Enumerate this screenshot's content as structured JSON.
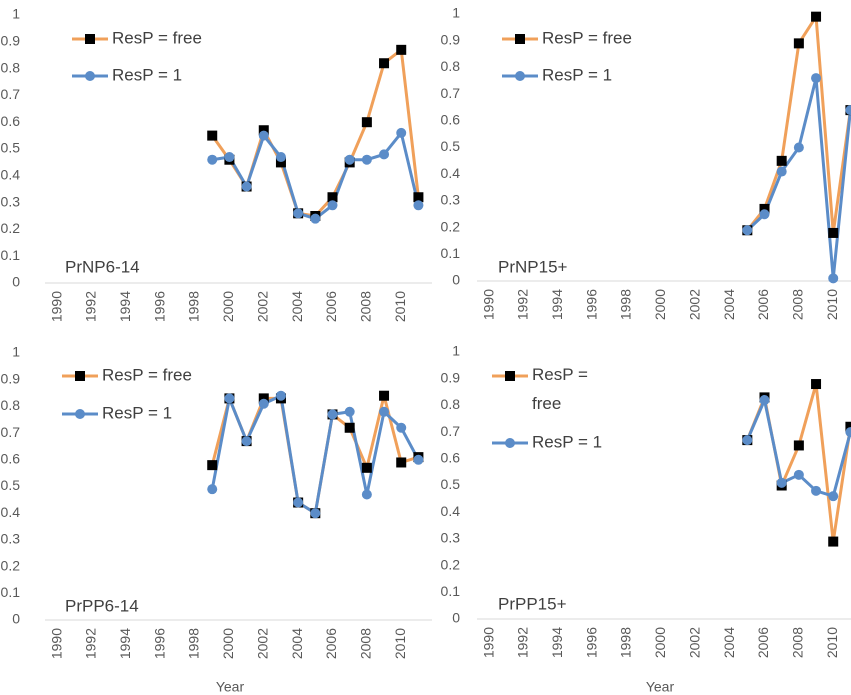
{
  "chart_data": [
    {
      "type": "line",
      "title": "PrNP6-14",
      "x": [
        1999,
        2000,
        2001,
        2002,
        2003,
        2004,
        2005,
        2006,
        2007,
        2008,
        2009,
        2010,
        2011
      ],
      "series": [
        {
          "name": "ResP = free",
          "color": "#f0a05a",
          "marker": "square",
          "marker_color": "#000000",
          "values": [
            0.55,
            0.46,
            0.36,
            0.57,
            0.45,
            0.26,
            0.25,
            0.32,
            0.45,
            0.6,
            0.82,
            0.87,
            0.32
          ]
        },
        {
          "name": "ResP = 1",
          "color": "#5b8cc8",
          "marker": "circle",
          "marker_color": "#5b8cc8",
          "values": [
            0.46,
            0.47,
            0.36,
            0.55,
            0.47,
            0.26,
            0.24,
            0.29,
            0.46,
            0.46,
            0.48,
            0.56,
            0.29
          ]
        }
      ],
      "xlim": [
        1989.5,
        2011.5
      ],
      "xticks": [
        1990,
        1992,
        1994,
        1996,
        1998,
        2000,
        2002,
        2004,
        2006,
        2008,
        2010
      ],
      "ylim": [
        0,
        1
      ],
      "yticks": [
        0,
        0.1,
        0.2,
        0.3,
        0.4,
        0.5,
        0.6,
        0.7,
        0.8,
        0.9,
        1
      ],
      "legend": "upper left"
    },
    {
      "type": "line",
      "title": "PrNP15+",
      "x": [
        2005,
        2006,
        2007,
        2008,
        2009,
        2010,
        2011
      ],
      "series": [
        {
          "name": "ResP = free",
          "color": "#f0a05a",
          "marker": "square",
          "marker_color": "#000000",
          "values": [
            0.19,
            0.27,
            0.45,
            0.89,
            0.99,
            0.18,
            0.64
          ]
        },
        {
          "name": "ResP = 1",
          "color": "#5b8cc8",
          "marker": "circle",
          "marker_color": "#5b8cc8",
          "values": [
            0.19,
            0.25,
            0.41,
            0.5,
            0.76,
            0.01,
            0.64
          ]
        }
      ],
      "xlim": [
        1989.5,
        2011.5
      ],
      "xticks": [
        1990,
        1992,
        1994,
        1996,
        1998,
        2000,
        2002,
        2004,
        2006,
        2008,
        2010
      ],
      "ylim": [
        0,
        1
      ],
      "yticks": [
        0,
        0.1,
        0.2,
        0.3,
        0.4,
        0.5,
        0.6,
        0.7,
        0.8,
        0.9,
        1
      ],
      "legend": "upper left"
    },
    {
      "type": "line",
      "title": "PrPP6-14",
      "xlabel": "Year",
      "x": [
        1999,
        2000,
        2001,
        2002,
        2003,
        2004,
        2005,
        2006,
        2007,
        2008,
        2009,
        2010,
        2011
      ],
      "series": [
        {
          "name": "ResP = free",
          "color": "#f0a05a",
          "marker": "square",
          "marker_color": "#000000",
          "values": [
            0.58,
            0.83,
            0.67,
            0.83,
            0.83,
            0.44,
            0.4,
            0.77,
            0.72,
            0.57,
            0.84,
            0.59,
            0.61
          ]
        },
        {
          "name": "ResP = 1",
          "color": "#5b8cc8",
          "marker": "circle",
          "marker_color": "#5b8cc8",
          "values": [
            0.49,
            0.83,
            0.67,
            0.81,
            0.84,
            0.44,
            0.4,
            0.77,
            0.78,
            0.47,
            0.78,
            0.72,
            0.6
          ]
        }
      ],
      "xlim": [
        1989.5,
        2011.5
      ],
      "xticks": [
        1990,
        1992,
        1994,
        1996,
        1998,
        2000,
        2002,
        2004,
        2006,
        2008,
        2010
      ],
      "ylim": [
        0,
        1
      ],
      "yticks": [
        0,
        0.1,
        0.2,
        0.3,
        0.4,
        0.5,
        0.6,
        0.7,
        0.8,
        0.9,
        1
      ],
      "legend": "upper left"
    },
    {
      "type": "line",
      "title": "PrPP15+",
      "xlabel": "Year",
      "x": [
        2005,
        2006,
        2007,
        2008,
        2009,
        2010,
        2011
      ],
      "series": [
        {
          "name": "ResP = free",
          "color": "#f0a05a",
          "marker": "square",
          "marker_color": "#000000",
          "values": [
            0.67,
            0.83,
            0.5,
            0.65,
            0.88,
            0.29,
            0.72
          ]
        },
        {
          "name": "ResP = 1",
          "color": "#5b8cc8",
          "marker": "circle",
          "marker_color": "#5b8cc8",
          "values": [
            0.67,
            0.82,
            0.51,
            0.54,
            0.48,
            0.46,
            0.7
          ]
        }
      ],
      "xlim": [
        1989.5,
        2011.5
      ],
      "xticks": [
        1990,
        1992,
        1994,
        1996,
        1998,
        2000,
        2002,
        2004,
        2006,
        2008,
        2010
      ],
      "ylim": [
        0,
        1
      ],
      "yticks": [
        0,
        0.1,
        0.2,
        0.3,
        0.4,
        0.5,
        0.6,
        0.7,
        0.8,
        0.9,
        1
      ],
      "legend": "upper left"
    }
  ]
}
